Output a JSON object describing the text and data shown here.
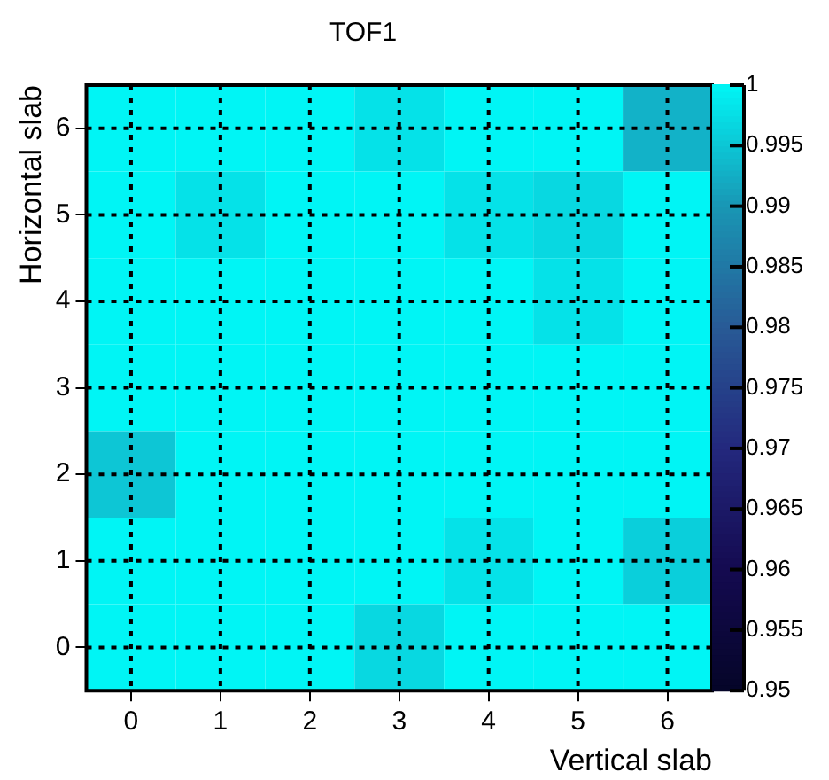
{
  "chart_data": {
    "type": "heatmap",
    "title": "TOF1",
    "xlabel": "Vertical slab",
    "ylabel": "Horizontal slab",
    "categories": [
      "0",
      "1",
      "2",
      "3",
      "4",
      "5",
      "6"
    ],
    "y_categories": [
      "6",
      "5",
      "4",
      "3",
      "2",
      "1",
      "0"
    ],
    "cells": [
      [
        1,
        1,
        1,
        0.998,
        1,
        1,
        0.993
      ],
      [
        1,
        0.998,
        1,
        1,
        0.998,
        0.997,
        1
      ],
      [
        1,
        1,
        1,
        1,
        1,
        0.998,
        1
      ],
      [
        1,
        1,
        1,
        1,
        1,
        1,
        1
      ],
      [
        0.995,
        1,
        1,
        1,
        1,
        1,
        1
      ],
      [
        1,
        1,
        1,
        1,
        0.998,
        1,
        0.996
      ],
      [
        1,
        1,
        1,
        0.997,
        1,
        1,
        1
      ]
    ],
    "clim": [
      0.95,
      1
    ],
    "cticks": [
      0.95,
      0.955,
      0.96,
      0.965,
      0.97,
      0.975,
      0.98,
      0.985,
      0.99,
      0.995,
      1
    ],
    "grid": true
  }
}
